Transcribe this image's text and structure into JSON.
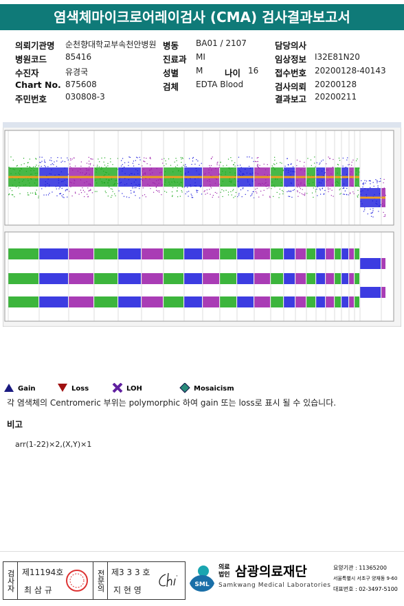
{
  "header": {
    "title": "염색체마이크로어레이검사 (CMA) 검사결과보고서"
  },
  "info": {
    "rows": [
      [
        {
          "label": "의뢰기관명",
          "value": "순천향대학교부속천안병원"
        },
        {
          "label": "병동",
          "value": "BA01 / 2107"
        },
        {
          "label": "담당의사"
        }
      ],
      [
        {
          "label": "병원코드",
          "value": "85416"
        },
        {
          "label": "진료과",
          "value": "MI"
        },
        {
          "label": "임상정보",
          "value": "I32E81N20"
        }
      ],
      [
        {
          "label": "수진자",
          "value": "유경국"
        },
        {
          "label": "성별",
          "value": "M"
        },
        {
          "label": "나이",
          "value": "16"
        },
        {
          "label": "접수번호",
          "value": "20200128-40143"
        }
      ],
      [
        {
          "label": "Chart No.",
          "value": "875608"
        },
        {
          "label": "검체",
          "value": "EDTA Blood"
        },
        {
          "label": "검사의뢰",
          "value": "20200128"
        }
      ],
      [
        {
          "label": "주민번호",
          "value": "030808-3"
        },
        {
          "label": "결과보고",
          "value": "20200211"
        }
      ]
    ]
  },
  "legend": [
    "Gain",
    "Loss",
    "LOH",
    "Mosaicism"
  ],
  "note": "각 염색체의 Centromeric 부위는 polymorphic 하여 gain 또는 loss로 표시 될 수 있습니다.",
  "remarks": {
    "title": "비고",
    "text": "arr(1-22)×2,(X,Y)×1"
  },
  "footer": {
    "examiner": {
      "role": "검사자",
      "number": "제11194호",
      "name": "최 삼 규"
    },
    "specialist": {
      "role": "전문의",
      "number": "제3 3 3 호",
      "name": "지 현 영"
    },
    "logo": "SML",
    "corp": "의료법인",
    "org": "삼광의료재단",
    "org_en": "Samkwang Medical Laboratories",
    "code": "요양기관 : 11365200",
    "address": "서울특별시 서초구 양재동 9-60",
    "phone": "대표번호 : 02-3497-5100"
  }
}
